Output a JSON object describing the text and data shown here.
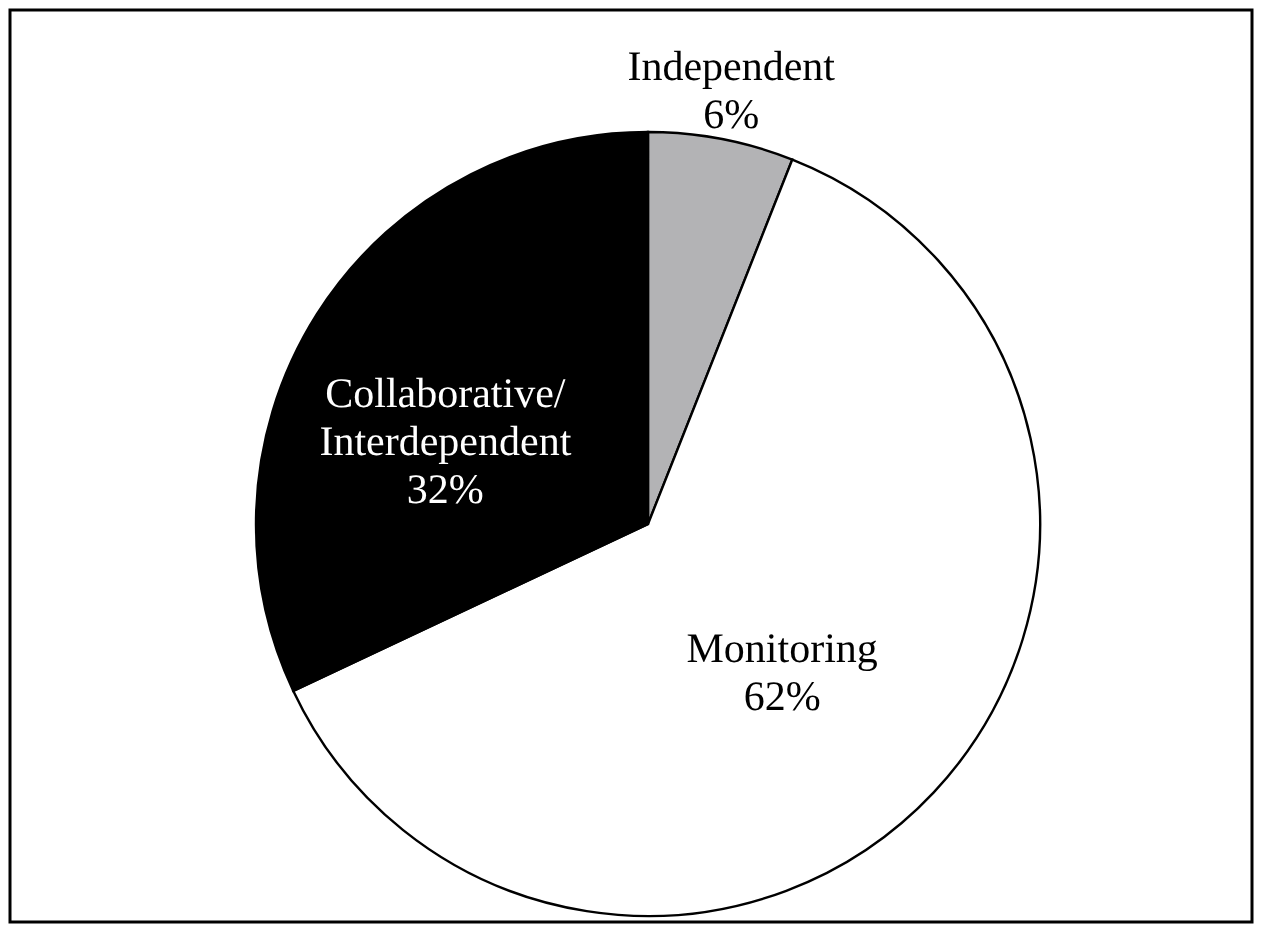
{
  "chart_data": {
    "type": "pie",
    "categories": [
      "Independent",
      "Monitoring",
      "Collaborative/Interdependent"
    ],
    "values": [
      6,
      62,
      32
    ],
    "value_labels": [
      "6%",
      "62%",
      "32%"
    ],
    "colors": [
      "#b3b3b5",
      "#ffffff",
      "#000000"
    ]
  }
}
